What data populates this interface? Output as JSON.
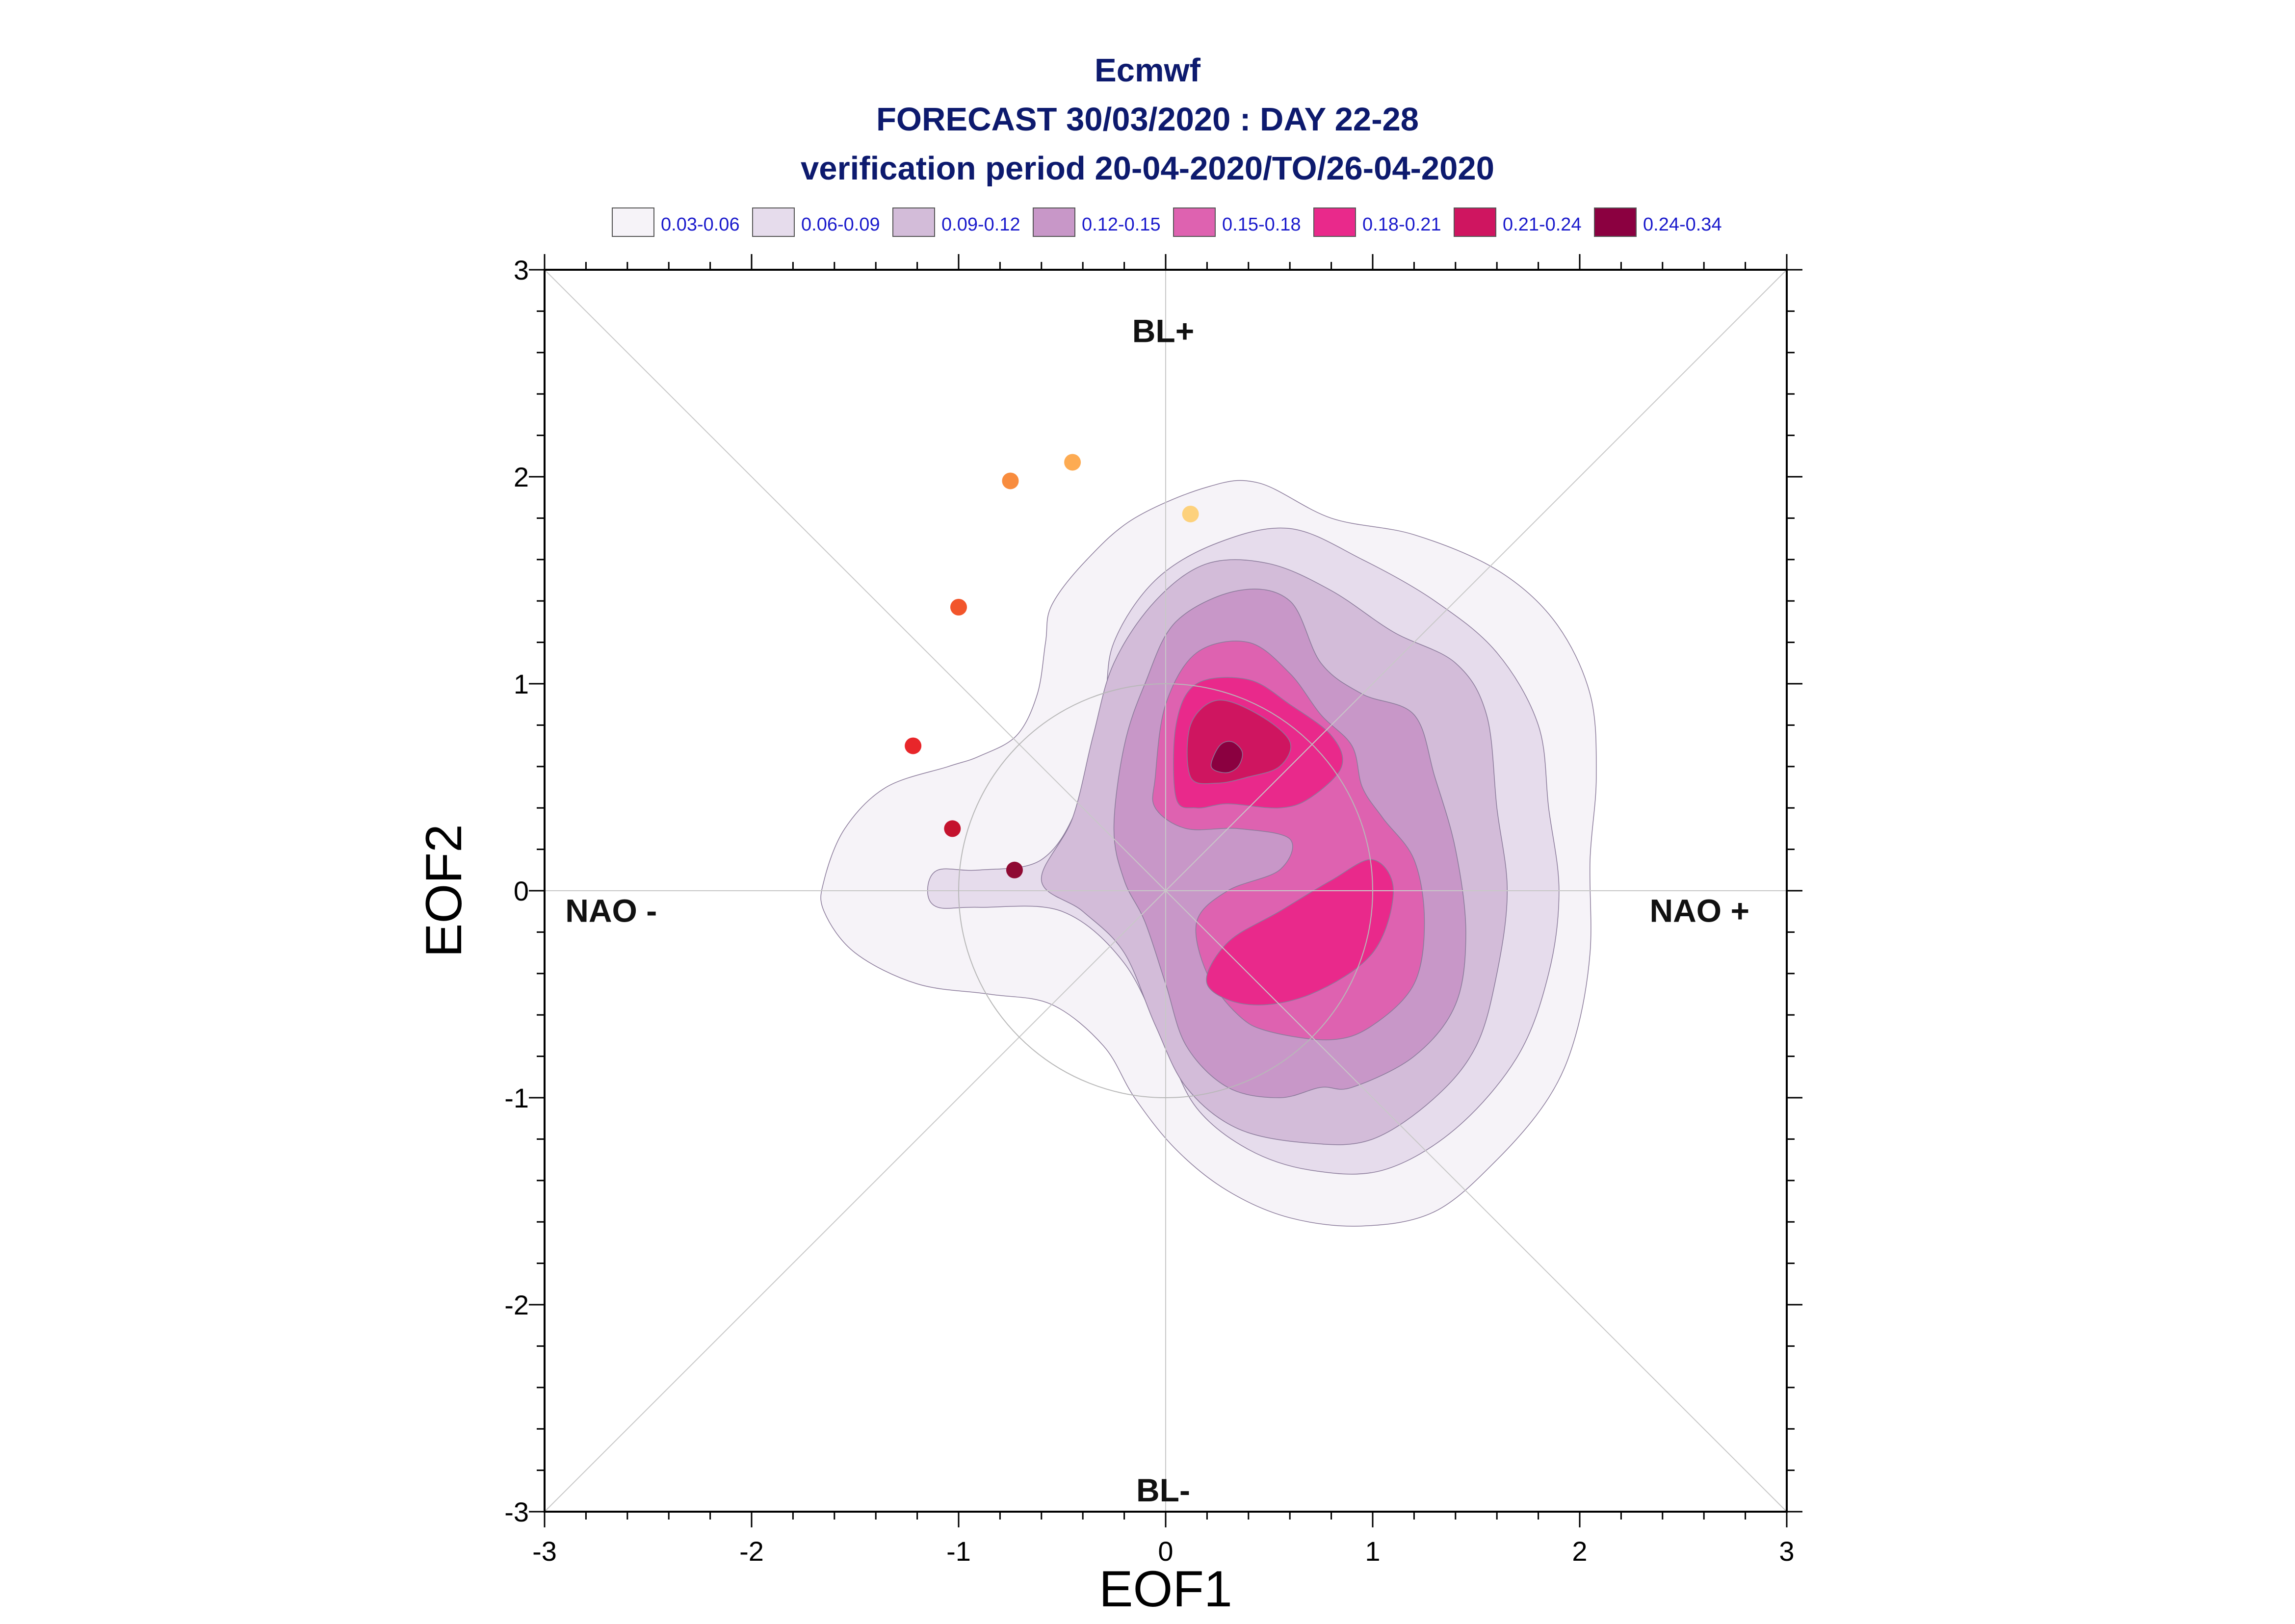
{
  "chart_data": {
    "type": "contour",
    "title": [
      "Ecmwf",
      "FORECAST 30/03/2020 : DAY 22-28",
      "verification period 20-04-2020/TO/26-04-2020"
    ],
    "xlabel": "EOF1",
    "ylabel": "EOF2",
    "xlim": [
      -3,
      3
    ],
    "ylim": [
      -3,
      3
    ],
    "xticks": [
      "-3",
      "-2",
      "-1",
      "0",
      "1",
      "2",
      "3"
    ],
    "yticks": [
      "-3",
      "-2",
      "-1",
      "0",
      "1",
      "2",
      "3"
    ],
    "regime_labels": {
      "top": "BL+",
      "bottom": "BL-",
      "left": "NAO -",
      "right": "NAO +"
    },
    "legend": {
      "placement": "top",
      "entries": [
        {
          "label": "0.03-0.06",
          "color": "#f6f3f8"
        },
        {
          "label": "0.06-0.09",
          "color": "#e6dcec"
        },
        {
          "label": "0.09-0.12",
          "color": "#d3bcd9"
        },
        {
          "label": "0.12-0.15",
          "color": "#c897c8"
        },
        {
          "label": "0.15-0.18",
          "color": "#de62b0"
        },
        {
          "label": "0.18-0.21",
          "color": "#e9298b"
        },
        {
          "label": "0.21-0.24",
          "color": "#cf1560"
        },
        {
          "label": "0.24-0.34",
          "color": "#8b0040"
        }
      ]
    },
    "unit_circle_radius": 1,
    "density_levels": [
      {
        "range": "0.03-0.06",
        "color": "#f6f3f8",
        "outline": [
          [
            -1.65,
            0.05
          ],
          [
            -1.55,
            0.3
          ],
          [
            -1.35,
            0.5
          ],
          [
            -1.05,
            0.6
          ],
          [
            -0.9,
            0.65
          ],
          [
            -0.72,
            0.75
          ],
          [
            -0.62,
            0.95
          ],
          [
            -0.58,
            1.2
          ],
          [
            -0.55,
            1.38
          ],
          [
            -0.38,
            1.6
          ],
          [
            -0.15,
            1.8
          ],
          [
            0.2,
            1.95
          ],
          [
            0.45,
            1.97
          ],
          [
            0.8,
            1.8
          ],
          [
            1.2,
            1.72
          ],
          [
            1.6,
            1.55
          ],
          [
            1.88,
            1.3
          ],
          [
            2.05,
            0.95
          ],
          [
            2.08,
            0.55
          ],
          [
            2.05,
            0.15
          ],
          [
            2.05,
            -0.3
          ],
          [
            1.98,
            -0.7
          ],
          [
            1.85,
            -1.0
          ],
          [
            1.6,
            -1.3
          ],
          [
            1.3,
            -1.55
          ],
          [
            0.95,
            -1.62
          ],
          [
            0.6,
            -1.58
          ],
          [
            0.3,
            -1.45
          ],
          [
            0.05,
            -1.25
          ],
          [
            -0.15,
            -1.0
          ],
          [
            -0.3,
            -0.75
          ],
          [
            -0.55,
            -0.55
          ],
          [
            -0.85,
            -0.5
          ],
          [
            -1.2,
            -0.45
          ],
          [
            -1.5,
            -0.3
          ],
          [
            -1.65,
            -0.1
          ]
        ]
      },
      {
        "range": "0.06-0.09",
        "color": "#e6dcec",
        "outline": [
          [
            -1.15,
            0.0
          ],
          [
            -1.1,
            0.1
          ],
          [
            -0.9,
            0.1
          ],
          [
            -0.6,
            0.15
          ],
          [
            -0.42,
            0.42
          ],
          [
            -0.3,
            0.88
          ],
          [
            -0.25,
            1.2
          ],
          [
            -0.05,
            1.5
          ],
          [
            0.25,
            1.68
          ],
          [
            0.6,
            1.75
          ],
          [
            0.95,
            1.6
          ],
          [
            1.3,
            1.4
          ],
          [
            1.6,
            1.15
          ],
          [
            1.8,
            0.8
          ],
          [
            1.85,
            0.4
          ],
          [
            1.9,
            0.0
          ],
          [
            1.85,
            -0.4
          ],
          [
            1.7,
            -0.8
          ],
          [
            1.4,
            -1.15
          ],
          [
            1.05,
            -1.35
          ],
          [
            0.7,
            -1.35
          ],
          [
            0.4,
            -1.25
          ],
          [
            0.15,
            -1.05
          ],
          [
            0.0,
            -0.75
          ],
          [
            -0.2,
            -0.35
          ],
          [
            -0.5,
            -0.1
          ],
          [
            -0.9,
            -0.08
          ],
          [
            -1.1,
            -0.08
          ]
        ]
      },
      {
        "range": "0.09-0.12",
        "color": "#d3bcd9",
        "outline": [
          [
            -0.6,
            0.05
          ],
          [
            -0.45,
            0.35
          ],
          [
            -0.35,
            0.75
          ],
          [
            -0.25,
            1.1
          ],
          [
            -0.05,
            1.4
          ],
          [
            0.2,
            1.58
          ],
          [
            0.5,
            1.58
          ],
          [
            0.8,
            1.45
          ],
          [
            1.1,
            1.25
          ],
          [
            1.4,
            1.1
          ],
          [
            1.55,
            0.85
          ],
          [
            1.6,
            0.4
          ],
          [
            1.65,
            0.0
          ],
          [
            1.6,
            -0.4
          ],
          [
            1.5,
            -0.75
          ],
          [
            1.3,
            -1.0
          ],
          [
            1.0,
            -1.2
          ],
          [
            0.7,
            -1.22
          ],
          [
            0.35,
            -1.15
          ],
          [
            0.1,
            -0.95
          ],
          [
            -0.05,
            -0.65
          ],
          [
            -0.2,
            -0.3
          ],
          [
            -0.4,
            -0.1
          ]
        ]
      },
      {
        "range": "0.12-0.15",
        "color": "#c897c8",
        "outline": [
          [
            -0.25,
            0.3
          ],
          [
            -0.2,
            0.7
          ],
          [
            -0.1,
            1.0
          ],
          [
            0.05,
            1.3
          ],
          [
            0.35,
            1.45
          ],
          [
            0.6,
            1.4
          ],
          [
            0.75,
            1.1
          ],
          [
            0.95,
            0.95
          ],
          [
            1.2,
            0.85
          ],
          [
            1.3,
            0.55
          ],
          [
            1.4,
            0.2
          ],
          [
            1.45,
            -0.2
          ],
          [
            1.4,
            -0.55
          ],
          [
            1.2,
            -0.8
          ],
          [
            0.9,
            -0.95
          ],
          [
            0.75,
            -0.95
          ],
          [
            0.55,
            -1.0
          ],
          [
            0.3,
            -0.95
          ],
          [
            0.1,
            -0.75
          ],
          [
            0.0,
            -0.45
          ],
          [
            -0.1,
            -0.15
          ],
          [
            -0.2,
            0.05
          ]
        ]
      },
      {
        "range": "0.15-0.18",
        "color": "#de62b0",
        "outline": [
          [
            -0.05,
            0.55
          ],
          [
            0.0,
            0.9
          ],
          [
            0.15,
            1.15
          ],
          [
            0.4,
            1.2
          ],
          [
            0.6,
            1.05
          ],
          [
            0.75,
            0.85
          ],
          [
            0.9,
            0.7
          ],
          [
            0.95,
            0.5
          ],
          [
            1.05,
            0.35
          ],
          [
            1.2,
            0.15
          ],
          [
            1.25,
            -0.15
          ],
          [
            1.2,
            -0.45
          ],
          [
            1.0,
            -0.65
          ],
          [
            0.8,
            -0.72
          ],
          [
            0.5,
            -0.68
          ],
          [
            0.35,
            -0.6
          ],
          [
            0.2,
            -0.4
          ],
          [
            0.15,
            -0.15
          ],
          [
            0.3,
            0.0
          ],
          [
            0.55,
            0.1
          ],
          [
            0.6,
            0.25
          ],
          [
            0.35,
            0.3
          ],
          [
            0.1,
            0.3
          ],
          [
            -0.05,
            0.4
          ]
        ]
      },
      {
        "range": "0.18-0.21",
        "color": "#e9298b",
        "outline": [
          [
            0.05,
            0.45
          ],
          [
            0.05,
            0.8
          ],
          [
            0.15,
            1.0
          ],
          [
            0.4,
            1.02
          ],
          [
            0.6,
            0.9
          ],
          [
            0.8,
            0.75
          ],
          [
            0.85,
            0.6
          ],
          [
            0.7,
            0.45
          ],
          [
            0.55,
            0.4
          ],
          [
            0.3,
            0.42
          ],
          [
            0.15,
            0.4
          ]
        ]
      },
      {
        "range": "0.18-0.21",
        "color": "#e9298b",
        "outline": [
          [
            0.3,
            -0.25
          ],
          [
            0.2,
            -0.45
          ],
          [
            0.4,
            -0.55
          ],
          [
            0.7,
            -0.5
          ],
          [
            1.0,
            -0.3
          ],
          [
            1.1,
            0.0
          ],
          [
            1.0,
            0.15
          ],
          [
            0.8,
            0.05
          ],
          [
            0.55,
            -0.1
          ]
        ]
      },
      {
        "range": "0.21-0.24",
        "color": "#cf1560",
        "outline": [
          [
            0.12,
            0.55
          ],
          [
            0.12,
            0.8
          ],
          [
            0.25,
            0.92
          ],
          [
            0.45,
            0.85
          ],
          [
            0.6,
            0.72
          ],
          [
            0.55,
            0.6
          ],
          [
            0.4,
            0.55
          ],
          [
            0.25,
            0.52
          ]
        ]
      },
      {
        "range": "0.24-0.34",
        "color": "#8b0040",
        "outline": [
          [
            0.22,
            0.6
          ],
          [
            0.26,
            0.7
          ],
          [
            0.32,
            0.72
          ],
          [
            0.37,
            0.67
          ],
          [
            0.35,
            0.6
          ],
          [
            0.29,
            0.57
          ]
        ]
      }
    ],
    "trajectory_points": [
      {
        "x": 0.12,
        "y": 1.82,
        "color": "#fdd17c"
      },
      {
        "x": -0.45,
        "y": 2.07,
        "color": "#fdab52"
      },
      {
        "x": -0.75,
        "y": 1.98,
        "color": "#f88c3e"
      },
      {
        "x": -1.0,
        "y": 1.37,
        "color": "#f2552b"
      },
      {
        "x": -1.22,
        "y": 0.7,
        "color": "#e8262a"
      },
      {
        "x": -1.03,
        "y": 0.3,
        "color": "#c4122e"
      },
      {
        "x": -0.73,
        "y": 0.1,
        "color": "#8f0a33"
      }
    ]
  }
}
